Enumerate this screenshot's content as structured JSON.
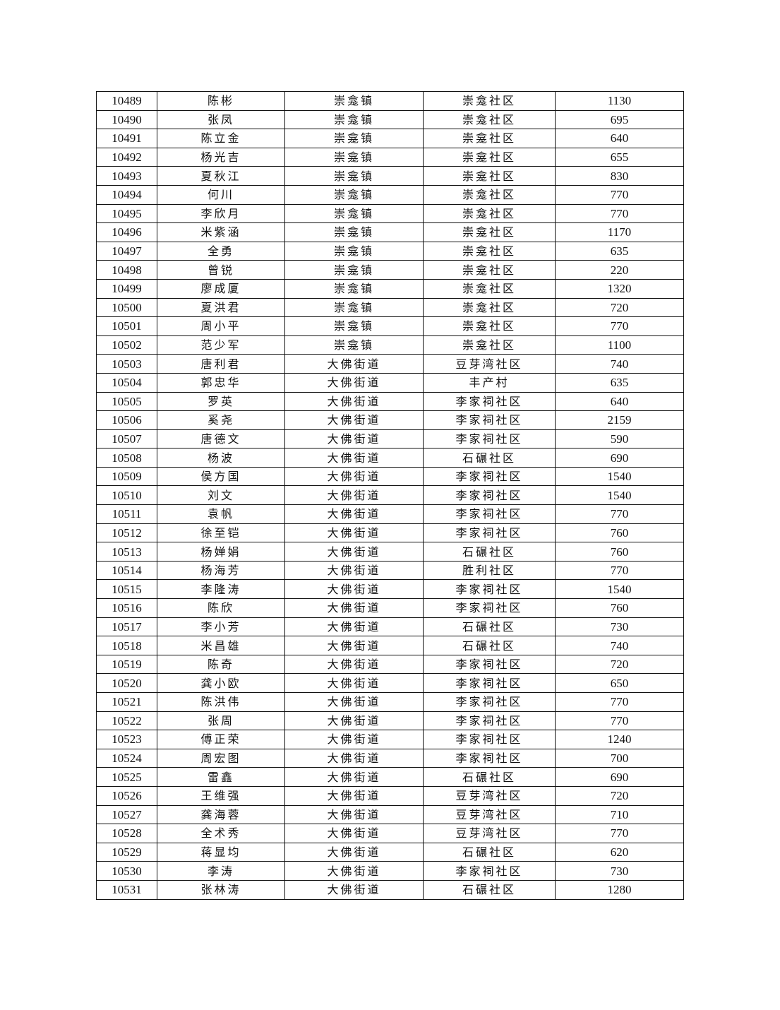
{
  "table": {
    "rows": [
      [
        "10489",
        "陈彬",
        "崇龛镇",
        "崇龛社区",
        "1130"
      ],
      [
        "10490",
        "张凤",
        "崇龛镇",
        "崇龛社区",
        "695"
      ],
      [
        "10491",
        "陈立金",
        "崇龛镇",
        "崇龛社区",
        "640"
      ],
      [
        "10492",
        "杨光吉",
        "崇龛镇",
        "崇龛社区",
        "655"
      ],
      [
        "10493",
        "夏秋江",
        "崇龛镇",
        "崇龛社区",
        "830"
      ],
      [
        "10494",
        "何川",
        "崇龛镇",
        "崇龛社区",
        "770"
      ],
      [
        "10495",
        "李欣月",
        "崇龛镇",
        "崇龛社区",
        "770"
      ],
      [
        "10496",
        "米紫涵",
        "崇龛镇",
        "崇龛社区",
        "1170"
      ],
      [
        "10497",
        "全勇",
        "崇龛镇",
        "崇龛社区",
        "635"
      ],
      [
        "10498",
        "曾锐",
        "崇龛镇",
        "崇龛社区",
        "220"
      ],
      [
        "10499",
        "廖成厦",
        "崇龛镇",
        "崇龛社区",
        "1320"
      ],
      [
        "10500",
        "夏洪君",
        "崇龛镇",
        "崇龛社区",
        "720"
      ],
      [
        "10501",
        "周小平",
        "崇龛镇",
        "崇龛社区",
        "770"
      ],
      [
        "10502",
        "范少军",
        "崇龛镇",
        "崇龛社区",
        "1100"
      ],
      [
        "10503",
        "唐利君",
        "大佛街道",
        "豆芽湾社区",
        "740"
      ],
      [
        "10504",
        "郭忠华",
        "大佛街道",
        "丰产村",
        "635"
      ],
      [
        "10505",
        "罗英",
        "大佛街道",
        "李家祠社区",
        "640"
      ],
      [
        "10506",
        "奚尧",
        "大佛街道",
        "李家祠社区",
        "2159"
      ],
      [
        "10507",
        "唐德文",
        "大佛街道",
        "李家祠社区",
        "590"
      ],
      [
        "10508",
        "杨波",
        "大佛街道",
        "石碾社区",
        "690"
      ],
      [
        "10509",
        "侯方国",
        "大佛街道",
        "李家祠社区",
        "1540"
      ],
      [
        "10510",
        "刘文",
        "大佛街道",
        "李家祠社区",
        "1540"
      ],
      [
        "10511",
        "袁帆",
        "大佛街道",
        "李家祠社区",
        "770"
      ],
      [
        "10512",
        "徐至铠",
        "大佛街道",
        "李家祠社区",
        "760"
      ],
      [
        "10513",
        "杨婵娟",
        "大佛街道",
        "石碾社区",
        "760"
      ],
      [
        "10514",
        "杨海芳",
        "大佛街道",
        "胜利社区",
        "770"
      ],
      [
        "10515",
        "李隆涛",
        "大佛街道",
        "李家祠社区",
        "1540"
      ],
      [
        "10516",
        "陈欣",
        "大佛街道",
        "李家祠社区",
        "760"
      ],
      [
        "10517",
        "李小芳",
        "大佛街道",
        "石碾社区",
        "730"
      ],
      [
        "10518",
        "米昌雄",
        "大佛街道",
        "石碾社区",
        "740"
      ],
      [
        "10519",
        "陈奇",
        "大佛街道",
        "李家祠社区",
        "720"
      ],
      [
        "10520",
        "龚小欧",
        "大佛街道",
        "李家祠社区",
        "650"
      ],
      [
        "10521",
        "陈洪伟",
        "大佛街道",
        "李家祠社区",
        "770"
      ],
      [
        "10522",
        "张周",
        "大佛街道",
        "李家祠社区",
        "770"
      ],
      [
        "10523",
        "傅正荣",
        "大佛街道",
        "李家祠社区",
        "1240"
      ],
      [
        "10524",
        "周宏图",
        "大佛街道",
        "李家祠社区",
        "700"
      ],
      [
        "10525",
        "雷鑫",
        "大佛街道",
        "石碾社区",
        "690"
      ],
      [
        "10526",
        "王维强",
        "大佛街道",
        "豆芽湾社区",
        "720"
      ],
      [
        "10527",
        "龚海蓉",
        "大佛街道",
        "豆芽湾社区",
        "710"
      ],
      [
        "10528",
        "全术秀",
        "大佛街道",
        "豆芽湾社区",
        "770"
      ],
      [
        "10529",
        "蒋显均",
        "大佛街道",
        "石碾社区",
        "620"
      ],
      [
        "10530",
        "李涛",
        "大佛街道",
        "李家祠社区",
        "730"
      ],
      [
        "10531",
        "张林涛",
        "大佛街道",
        "石碾社区",
        "1280"
      ]
    ]
  }
}
